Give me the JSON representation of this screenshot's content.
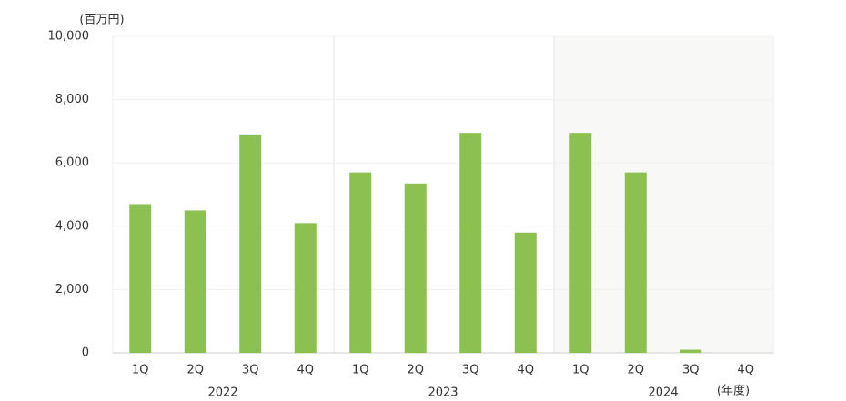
{
  "chart_data": {
    "type": "bar",
    "y_unit_label": "(百万円)",
    "x_unit_label": "(年度)",
    "groups": [
      "2022",
      "2023",
      "2024"
    ],
    "categories": [
      "1Q",
      "2Q",
      "3Q",
      "4Q",
      "1Q",
      "2Q",
      "3Q",
      "4Q",
      "1Q",
      "2Q",
      "3Q",
      "4Q"
    ],
    "values": [
      4700,
      4500,
      6900,
      4100,
      5700,
      5350,
      6950,
      3800,
      6950,
      5700,
      100,
      null
    ],
    "color": "#8cc152",
    "ylim": [
      0,
      10000
    ],
    "yticks": [
      0,
      {
        "value": 2000,
        "label": "2,000"
      },
      {
        "value": 4000,
        "label": "4,000"
      },
      {
        "value": 6000,
        "label": "6,000"
      },
      {
        "value": 8000,
        "label": "8,000"
      },
      {
        "value": 10000,
        "label": "10,000"
      }
    ]
  }
}
